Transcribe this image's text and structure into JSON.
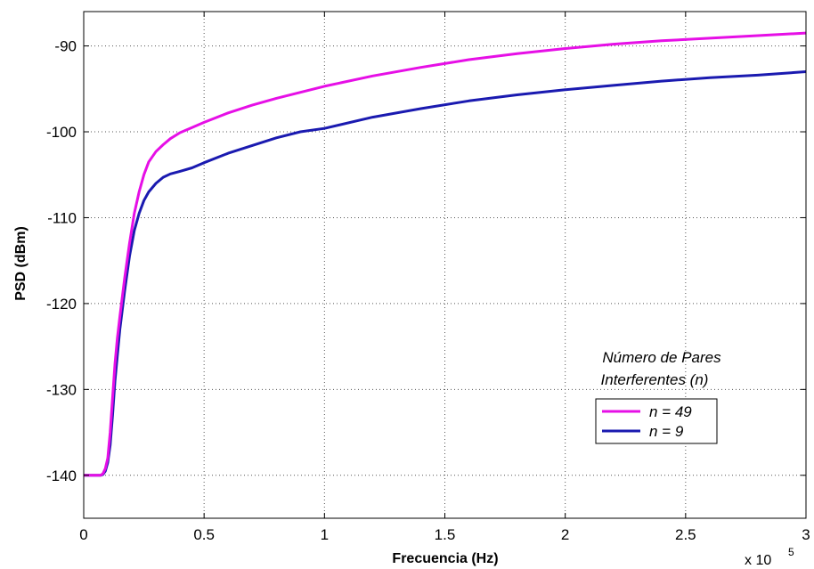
{
  "chart_data": {
    "type": "line",
    "xlabel": "Frecuencia (Hz)",
    "ylabel": "PSD (dBm)",
    "x_multiplier": {
      "base": "x 10",
      "exponent": "5"
    },
    "xlim": [
      0,
      3
    ],
    "ylim": [
      -145,
      -86
    ],
    "x_ticks": [
      0,
      0.5,
      1,
      1.5,
      2,
      2.5,
      3
    ],
    "x_tick_labels": [
      "0",
      "0.5",
      "1",
      "1.5",
      "2",
      "2.5",
      "3"
    ],
    "y_ticks": [
      -140,
      -130,
      -120,
      -110,
      -100,
      -90
    ],
    "y_tick_labels": [
      "-140",
      "-130",
      "-120",
      "-110",
      "-100",
      "-90"
    ],
    "grid": true,
    "legend": {
      "title_line1": "Número de Pares",
      "title_line2": "Interferentes (n)",
      "placement": "right"
    },
    "series": [
      {
        "name": "n = 49",
        "color": "#e60fe6",
        "x": [
          0,
          0.05,
          0.07,
          0.08,
          0.09,
          0.1,
          0.11,
          0.12,
          0.13,
          0.14,
          0.15,
          0.17,
          0.19,
          0.21,
          0.23,
          0.25,
          0.27,
          0.3,
          0.33,
          0.36,
          0.4,
          0.45,
          0.5,
          0.6,
          0.7,
          0.8,
          0.9,
          1.0,
          1.2,
          1.4,
          1.6,
          1.8,
          2.0,
          2.2,
          2.4,
          2.6,
          2.8,
          3.0
        ],
        "y": [
          -140,
          -140,
          -140,
          -139.8,
          -139.2,
          -138,
          -135,
          -131,
          -127,
          -124,
          -121.5,
          -117,
          -113,
          -109.5,
          -107,
          -105,
          -103.5,
          -102.3,
          -101.5,
          -100.8,
          -100.1,
          -99.5,
          -98.9,
          -97.8,
          -96.9,
          -96.1,
          -95.4,
          -94.7,
          -93.5,
          -92.5,
          -91.6,
          -90.9,
          -90.3,
          -89.8,
          -89.4,
          -89.1,
          -88.8,
          -88.5
        ]
      },
      {
        "name": "n = 9",
        "color": "#1a1ab0",
        "x": [
          0,
          0.05,
          0.07,
          0.08,
          0.09,
          0.1,
          0.11,
          0.12,
          0.13,
          0.14,
          0.15,
          0.17,
          0.19,
          0.21,
          0.23,
          0.25,
          0.27,
          0.3,
          0.33,
          0.36,
          0.4,
          0.45,
          0.5,
          0.6,
          0.7,
          0.8,
          0.9,
          1.0,
          1.2,
          1.4,
          1.6,
          1.8,
          2.0,
          2.2,
          2.4,
          2.6,
          2.8,
          3.0
        ],
        "y": [
          -140,
          -140,
          -140,
          -139.9,
          -139.5,
          -138.5,
          -136.5,
          -133,
          -129,
          -126,
          -123,
          -118.5,
          -114.5,
          -111.5,
          -109.5,
          -108,
          -107,
          -106,
          -105.3,
          -104.9,
          -104.6,
          -104.2,
          -103.6,
          -102.5,
          -101.6,
          -100.7,
          -100,
          -99.6,
          -98.3,
          -97.3,
          -96.4,
          -95.7,
          -95.1,
          -94.6,
          -94.1,
          -93.7,
          -93.4,
          -93
        ]
      }
    ]
  }
}
